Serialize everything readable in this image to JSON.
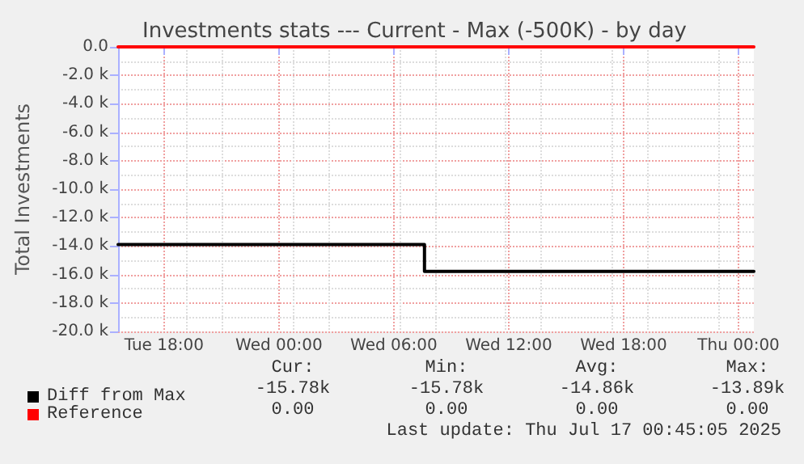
{
  "chart_data": {
    "type": "step",
    "title": "Investments stats --- Current - Max (-500K) - by day",
    "ylabel": "Total Investments",
    "series": [
      {
        "name": "Diff from Max",
        "color": "#000000",
        "x": [
          "2025-07-15T15:36",
          "2025-07-16T07:36",
          "2025-07-17T00:48"
        ],
        "values": [
          -13890,
          -15780,
          -15780
        ]
      },
      {
        "name": "Reference",
        "color": "#ff0000",
        "x": [
          "2025-07-15T15:36",
          "2025-07-17T00:48"
        ],
        "values": [
          0,
          0
        ]
      }
    ],
    "xlim": [
      "2025-07-15T15:36",
      "2025-07-17T00:48"
    ],
    "xticks": [
      {
        "value": "2025-07-15T18:00",
        "label": "Tue 18:00"
      },
      {
        "value": "2025-07-16T00:00",
        "label": "Wed 00:00"
      },
      {
        "value": "2025-07-16T06:00",
        "label": "Wed 06:00"
      },
      {
        "value": "2025-07-16T12:00",
        "label": "Wed 12:00"
      },
      {
        "value": "2025-07-16T18:00",
        "label": "Wed 18:00"
      },
      {
        "value": "2025-07-17T00:00",
        "label": "Thu 00:00"
      }
    ],
    "ylim": [
      -20000,
      0
    ],
    "yticks": [
      {
        "value": -20000,
        "label": "-20.0 k"
      },
      {
        "value": -18000,
        "label": "-18.0 k"
      },
      {
        "value": -16000,
        "label": "-16.0 k"
      },
      {
        "value": -14000,
        "label": "-14.0 k"
      },
      {
        "value": -12000,
        "label": "-12.0 k"
      },
      {
        "value": -10000,
        "label": "-10.0 k"
      },
      {
        "value": -8000,
        "label": "-8.0 k"
      },
      {
        "value": -6000,
        "label": "-6.0 k"
      },
      {
        "value": -4000,
        "label": "-4.0 k"
      },
      {
        "value": -2000,
        "label": "-2.0 k"
      },
      {
        "value": 0,
        "label": "0.0"
      }
    ],
    "grid": true,
    "legend": "bottom left",
    "marker": "none",
    "line_style": "solid",
    "annotations": [
      "Cur:",
      "Min:",
      "Avg:",
      "Max:",
      "-15.78k",
      "-15.78k",
      "-14.86k",
      "-13.89k",
      "0.00",
      "0.00",
      "0.00",
      "0.00",
      "Last update: Thu Jul 17 00:45:05 2025"
    ]
  }
}
